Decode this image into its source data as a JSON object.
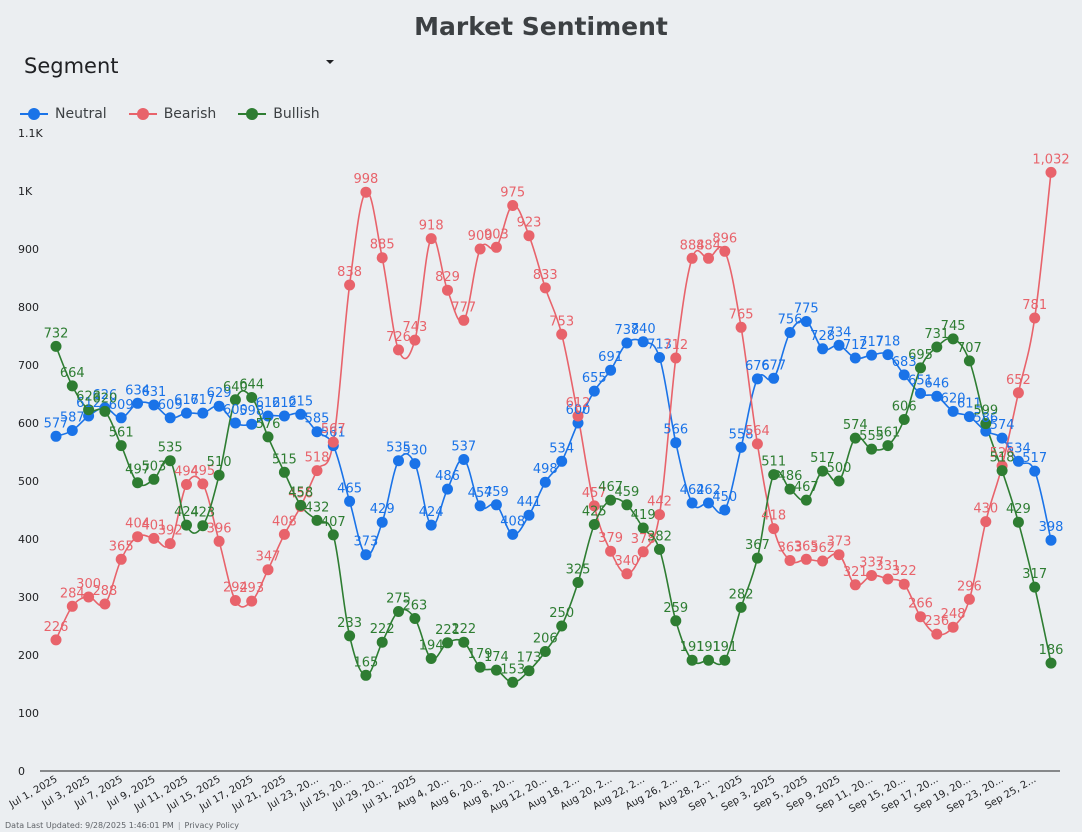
{
  "header": {
    "title": "Market Sentiment"
  },
  "filter": {
    "label": "Segment"
  },
  "footer": {
    "updated": "Data Last Updated: 9/28/2025 1:46:01 PM",
    "separator": "|",
    "privacy": "Privacy Policy"
  },
  "colors": {
    "Neutral": "#1a73e8",
    "Bearish": "#e8636b",
    "Bullish": "#2e7d32"
  },
  "chart_data": {
    "type": "line",
    "title": "Market Sentiment",
    "xlabel": "",
    "ylabel": "",
    "ylim": [
      0,
      1100
    ],
    "y_ticks": [
      0,
      100,
      200,
      300,
      400,
      500,
      600,
      700,
      800,
      900,
      1000,
      1100
    ],
    "y_tick_labels": [
      "0",
      "100",
      "200",
      "300",
      "400",
      "500",
      "600",
      "700",
      "800",
      "900",
      "1K",
      "1.1K"
    ],
    "legend_position": "top-left",
    "grid": false,
    "x_tick_labels": [
      "Jul 1, 2025",
      "Jul 3, 2025",
      "Jul 7, 2025",
      "Jul 9, 2025",
      "Jul 11, 2025",
      "Jul 15, 2025",
      "Jul 17, 2025",
      "Jul 21, 2025",
      "Jul 23, 20...",
      "Jul 25, 20...",
      "Jul 29, 20...",
      "Jul 31, 2025",
      "Aug 4, 20...",
      "Aug 6, 20...",
      "Aug 8, 20...",
      "Aug 12, 20...",
      "Aug 18, 2...",
      "Aug 20, 2...",
      "Aug 22, 2...",
      "Aug 26, 2...",
      "Aug 28, 2...",
      "Sep 1, 2025",
      "Sep 3, 2025",
      "Sep 5, 2025",
      "Sep 9, 2025",
      "Sep 11, 20...",
      "Sep 15, 20...",
      "Sep 17, 20...",
      "Sep 19, 20...",
      "Sep 23, 20...",
      "Sep 25, 2..."
    ],
    "x_tick_every": 2,
    "series": [
      {
        "name": "Neutral",
        "values": [
          577,
          587,
          612,
          626,
          609,
          634,
          631,
          609,
          617,
          617,
          629,
          600,
          598,
          612,
          612,
          615,
          585,
          561,
          465,
          373,
          429,
          535,
          530,
          424,
          486,
          537,
          457,
          459,
          408,
          441,
          498,
          534,
          600,
          655,
          691,
          738,
          740,
          713,
          566,
          462,
          462,
          450,
          558,
          676,
          677,
          756,
          775,
          728,
          734,
          712,
          717,
          718,
          683,
          651,
          646,
          620,
          611,
          586,
          574,
          534,
          517,
          398
        ]
      },
      {
        "name": "Bearish",
        "values": [
          226,
          284,
          300,
          288,
          365,
          404,
          401,
          392,
          494,
          495,
          396,
          294,
          293,
          347,
          408,
          456,
          518,
          567,
          838,
          998,
          885,
          726,
          743,
          918,
          829,
          777,
          900,
          903,
          975,
          923,
          833,
          753,
          612,
          457,
          379,
          340,
          378,
          442,
          712,
          884,
          884,
          896,
          765,
          564,
          418,
          363,
          365,
          362,
          373,
          321,
          337,
          331,
          322,
          266,
          236,
          248,
          296,
          430,
          526,
          652,
          781,
          1032
        ]
      },
      {
        "name": "Bullish",
        "values": [
          732,
          664,
          623,
          620,
          561,
          497,
          503,
          535,
          424,
          423,
          510,
          640,
          644,
          576,
          515,
          458,
          432,
          407,
          233,
          165,
          222,
          275,
          263,
          194,
          221,
          222,
          179,
          174,
          153,
          173,
          206,
          250,
          325,
          425,
          467,
          459,
          419,
          382,
          259,
          191,
          191,
          191,
          282,
          367,
          511,
          486,
          467,
          517,
          500,
          574,
          555,
          561,
          606,
          695,
          731,
          745,
          707,
          599,
          518,
          429,
          317,
          186
        ]
      }
    ]
  }
}
